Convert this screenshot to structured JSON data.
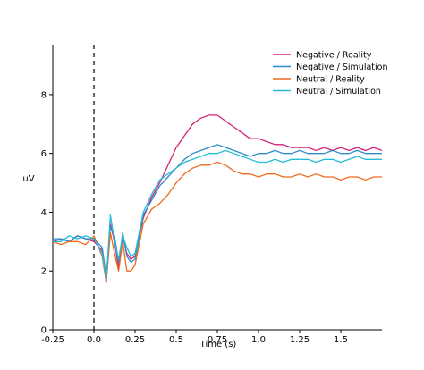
{
  "chart_data": {
    "type": "line",
    "title": "",
    "xlabel": "Time (s)",
    "ylabel": "uV",
    "xlim": [
      -0.25,
      1.75
    ],
    "ylim": [
      0,
      9.7
    ],
    "xticks": [
      -0.25,
      0,
      0.25,
      0.5,
      0.75,
      1.0,
      1.25,
      1.5
    ],
    "xtick_labels": [
      "-0.25",
      "0.0",
      "0.25",
      "0.5",
      "0.75",
      "1.0",
      "1.25",
      "1.5"
    ],
    "yticks": [
      0,
      2,
      4,
      6,
      8
    ],
    "ytick_labels": [
      "0",
      "2",
      "4",
      "6",
      "8"
    ],
    "grid": false,
    "legend_position": "top-right",
    "vline": {
      "x": 0,
      "style": "dashed",
      "color": "#000000"
    },
    "x": [
      -0.25,
      -0.2,
      -0.15,
      -0.1,
      -0.05,
      0,
      0.05,
      0.075,
      0.1,
      0.125,
      0.15,
      0.175,
      0.2,
      0.225,
      0.25,
      0.3,
      0.35,
      0.4,
      0.45,
      0.5,
      0.55,
      0.6,
      0.65,
      0.7,
      0.75,
      0.8,
      0.85,
      0.9,
      0.95,
      1.0,
      1.05,
      1.1,
      1.15,
      1.2,
      1.25,
      1.3,
      1.35,
      1.4,
      1.45,
      1.5,
      1.55,
      1.6,
      1.65,
      1.7,
      1.75
    ],
    "series": [
      {
        "name": "Negative / Reality",
        "color": "#d6227a",
        "values": [
          3.0,
          3.1,
          3.0,
          3.2,
          3.1,
          3.0,
          2.7,
          1.6,
          3.6,
          3.0,
          2.1,
          3.2,
          2.6,
          2.4,
          2.5,
          3.8,
          4.5,
          5.0,
          5.6,
          6.2,
          6.6,
          7.0,
          7.2,
          7.3,
          7.3,
          7.1,
          6.9,
          6.7,
          6.5,
          6.5,
          6.4,
          6.3,
          6.3,
          6.2,
          6.2,
          6.2,
          6.1,
          6.2,
          6.1,
          6.2,
          6.1,
          6.2,
          6.1,
          6.2,
          6.1
        ]
      },
      {
        "name": "Negative / Simulation",
        "color": "#2b8bc9",
        "values": [
          3.1,
          3.1,
          3.0,
          3.2,
          3.1,
          3.1,
          2.8,
          1.8,
          3.5,
          3.2,
          2.3,
          3.3,
          2.5,
          2.3,
          2.4,
          3.9,
          4.4,
          4.9,
          5.2,
          5.5,
          5.8,
          6.0,
          6.1,
          6.2,
          6.3,
          6.2,
          6.1,
          6.0,
          5.9,
          6.0,
          6.0,
          6.1,
          6.0,
          6.0,
          6.1,
          6.0,
          6.0,
          6.0,
          6.1,
          6.0,
          6.0,
          6.1,
          6.0,
          6.0,
          6.0
        ]
      },
      {
        "name": "Neutral / Reality",
        "color": "#ee6a1c",
        "values": [
          3.0,
          2.9,
          3.0,
          3.0,
          2.9,
          3.2,
          2.5,
          1.6,
          3.3,
          2.6,
          2.0,
          3.0,
          2.0,
          2.0,
          2.2,
          3.6,
          4.1,
          4.3,
          4.6,
          5.0,
          5.3,
          5.5,
          5.6,
          5.6,
          5.7,
          5.6,
          5.4,
          5.3,
          5.3,
          5.2,
          5.3,
          5.3,
          5.2,
          5.2,
          5.3,
          5.2,
          5.3,
          5.2,
          5.2,
          5.1,
          5.2,
          5.2,
          5.1,
          5.2,
          5.2
        ]
      },
      {
        "name": "Neutral / Simulation",
        "color": "#26bcd6",
        "values": [
          3.0,
          3.0,
          3.2,
          3.1,
          3.2,
          3.1,
          2.6,
          1.7,
          3.9,
          3.0,
          2.4,
          3.2,
          2.8,
          2.5,
          2.6,
          4.0,
          4.6,
          5.1,
          5.3,
          5.5,
          5.7,
          5.8,
          5.9,
          6.0,
          6.0,
          6.1,
          6.0,
          5.9,
          5.8,
          5.7,
          5.7,
          5.8,
          5.7,
          5.8,
          5.8,
          5.8,
          5.7,
          5.8,
          5.8,
          5.7,
          5.8,
          5.9,
          5.8,
          5.8,
          5.8
        ]
      }
    ]
  }
}
